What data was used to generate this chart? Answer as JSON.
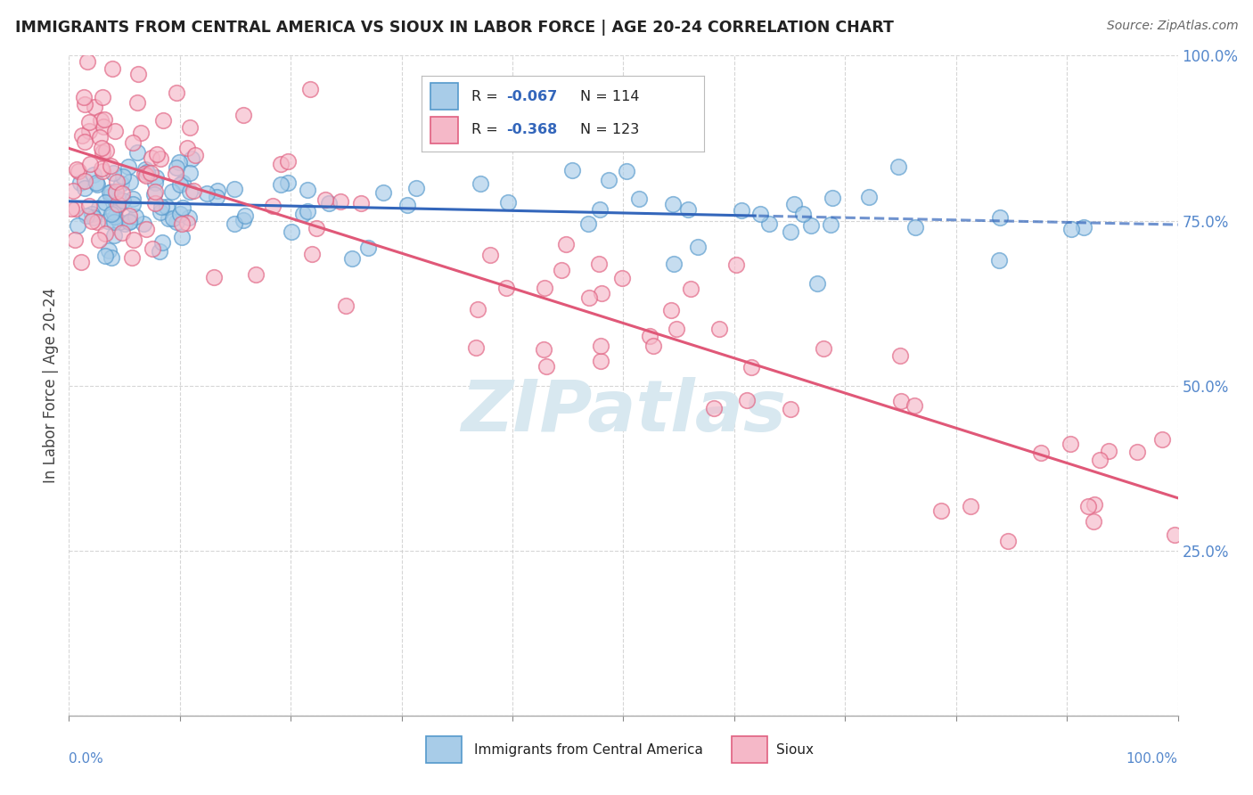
{
  "title": "IMMIGRANTS FROM CENTRAL AMERICA VS SIOUX IN LABOR FORCE | AGE 20-24 CORRELATION CHART",
  "source": "Source: ZipAtlas.com",
  "ylabel": "In Labor Force | Age 20-24",
  "xlim": [
    0,
    1
  ],
  "ylim": [
    0,
    1
  ],
  "legend_blue_r": "-0.067",
  "legend_blue_n": "114",
  "legend_pink_r": "-0.368",
  "legend_pink_n": "123",
  "legend_blue_label": "Immigrants from Central America",
  "legend_pink_label": "Sioux",
  "blue_fill": "#a8cce8",
  "blue_edge": "#5599cc",
  "pink_fill": "#f5b8c8",
  "pink_edge": "#e06080",
  "blue_line_color": "#3366bb",
  "pink_line_color": "#e05878",
  "background_color": "#ffffff",
  "grid_color": "#cccccc",
  "tick_color": "#5588cc",
  "label_color": "#444444",
  "r_color": "#3366bb",
  "watermark_color": "#d8e8f0",
  "ytick_vals": [
    0.0,
    0.25,
    0.5,
    0.75,
    1.0
  ],
  "ytick_labels": [
    "",
    "25.0%",
    "50.0%",
    "75.0%",
    "100.0%"
  ]
}
